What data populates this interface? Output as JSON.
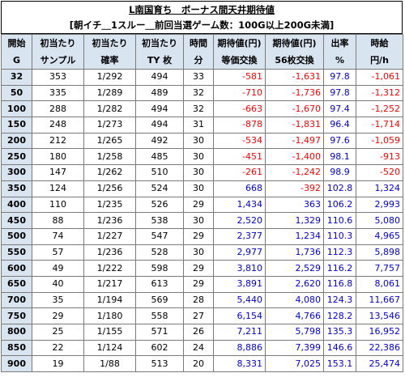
{
  "title": {
    "line1": "L南国育ち　ボーナス間天井期待値",
    "line2": "[朝イチ＿1スルー＿前回当選ゲーム数：100G以上200G未満]"
  },
  "headers": [
    [
      "開始",
      "G"
    ],
    [
      "初当たり",
      "サンプル"
    ],
    [
      "初当たり",
      "確率"
    ],
    [
      "初当たり",
      "TY 枚"
    ],
    [
      "時間",
      "分"
    ],
    [
      "期待値(円)",
      "等価交換"
    ],
    [
      "期待値(円)",
      "56枚交換"
    ],
    [
      "出率",
      "%"
    ],
    [
      "時給",
      "円/h"
    ]
  ],
  "colors": {
    "negative": "#ff0000",
    "positive": "#0000dd",
    "header_bg": "#d9e4f1"
  },
  "rows": [
    [
      "32",
      "353",
      "1/292",
      "494",
      "33",
      "-581",
      "-1,631",
      "97.8",
      "-1,061"
    ],
    [
      "50",
      "335",
      "1/289",
      "489",
      "32",
      "-710",
      "-1,736",
      "97.8",
      "-1,312"
    ],
    [
      "100",
      "288",
      "1/282",
      "494",
      "32",
      "-663",
      "-1,670",
      "97.4",
      "-1,252"
    ],
    [
      "150",
      "248",
      "1/273",
      "494",
      "31",
      "-878",
      "-1,831",
      "96.4",
      "-1,714"
    ],
    [
      "200",
      "212",
      "1/265",
      "492",
      "30",
      "-534",
      "-1,497",
      "97.6",
      "-1,059"
    ],
    [
      "250",
      "180",
      "1/258",
      "485",
      "30",
      "-451",
      "-1,400",
      "98.1",
      "-913"
    ],
    [
      "300",
      "147",
      "1/262",
      "510",
      "30",
      "-261",
      "-1,242",
      "98.9",
      "-520"
    ],
    [
      "350",
      "124",
      "1/256",
      "524",
      "30",
      "668",
      "-392",
      "102.8",
      "1,324"
    ],
    [
      "400",
      "110",
      "1/235",
      "526",
      "29",
      "1,434",
      "363",
      "106.2",
      "2,993"
    ],
    [
      "450",
      "88",
      "1/236",
      "538",
      "30",
      "2,520",
      "1,329",
      "110.6",
      "5,080"
    ],
    [
      "500",
      "74",
      "1/227",
      "547",
      "29",
      "2,377",
      "1,234",
      "110.3",
      "4,965"
    ],
    [
      "550",
      "57",
      "1/236",
      "528",
      "30",
      "2,977",
      "1,736",
      "112.3",
      "5,898"
    ],
    [
      "600",
      "49",
      "1/222",
      "598",
      "29",
      "3,810",
      "2,529",
      "116.2",
      "7,757"
    ],
    [
      "650",
      "40",
      "1/217",
      "613",
      "29",
      "3,891",
      "2,620",
      "116.8",
      "8,061"
    ],
    [
      "700",
      "35",
      "1/194",
      "569",
      "28",
      "5,440",
      "4,080",
      "124.3",
      "11,667"
    ],
    [
      "750",
      "29",
      "1/180",
      "558",
      "27",
      "6,154",
      "4,766",
      "128.2",
      "13,546"
    ],
    [
      "800",
      "25",
      "1/155",
      "571",
      "26",
      "7,211",
      "5,798",
      "135.3",
      "16,952"
    ],
    [
      "850",
      "22",
      "1/124",
      "602",
      "24",
      "8,886",
      "7,399",
      "146.6",
      "22,386"
    ],
    [
      "900",
      "19",
      "1/88",
      "513",
      "20",
      "8,331",
      "7,025",
      "153.1",
      "25,474"
    ]
  ]
}
